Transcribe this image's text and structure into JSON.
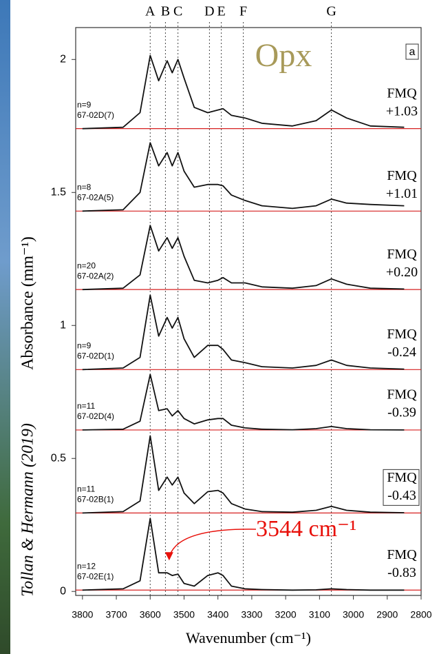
{
  "chart_data": {
    "type": "line",
    "panel_label": "a",
    "mineral": "Opx",
    "ylabel": "Absorbance (mm⁻¹)",
    "xlabel": "Wavenumber (cm⁻¹)",
    "citation": "Tollan & Hermann (2019)",
    "xlim": [
      3820,
      2800
    ],
    "ylim": [
      -0.015,
      2.12
    ],
    "xticks": [
      3800,
      3700,
      3600,
      3500,
      3400,
      3300,
      3200,
      3100,
      3000,
      2900,
      2800
    ],
    "yticks": [
      0,
      0.5,
      1,
      1.5,
      2
    ],
    "peaks": [
      {
        "label": "A",
        "x": 3600
      },
      {
        "label": "B",
        "x": 3555
      },
      {
        "label": "C",
        "x": 3518
      },
      {
        "label": "D",
        "x": 3425
      },
      {
        "label": "E",
        "x": 3390
      },
      {
        "label": "F",
        "x": 3325
      },
      {
        "label": "G",
        "x": 3065
      }
    ],
    "x": [
      3800,
      3680,
      3630,
      3600,
      3575,
      3550,
      3535,
      3518,
      3500,
      3470,
      3430,
      3400,
      3385,
      3360,
      3320,
      3270,
      3180,
      3110,
      3065,
      3020,
      2950,
      2850
    ],
    "series": [
      {
        "name": "67-02D(7)",
        "n": "n=9",
        "fmq": [
          "FMQ",
          "+1.03"
        ],
        "color": "#111111",
        "baseline": 1.74,
        "values": [
          1.74,
          1.745,
          1.8,
          2.015,
          1.92,
          1.995,
          1.95,
          2.0,
          1.93,
          1.82,
          1.8,
          1.81,
          1.815,
          1.79,
          1.78,
          1.76,
          1.75,
          1.77,
          1.81,
          1.78,
          1.75,
          1.745
        ]
      },
      {
        "name": "67-02A(5)",
        "n": "n=8",
        "fmq": [
          "FMQ",
          "+1.01"
        ],
        "color": "#111111",
        "baseline": 1.43,
        "values": [
          1.43,
          1.435,
          1.5,
          1.687,
          1.6,
          1.65,
          1.6,
          1.65,
          1.58,
          1.52,
          1.53,
          1.53,
          1.525,
          1.49,
          1.47,
          1.45,
          1.44,
          1.45,
          1.475,
          1.46,
          1.455,
          1.45
        ]
      },
      {
        "name": "67-02A(2)",
        "n": "n=20",
        "fmq": [
          "FMQ",
          "+0.20"
        ],
        "color": "#111111",
        "baseline": 1.135,
        "values": [
          1.135,
          1.14,
          1.19,
          1.376,
          1.28,
          1.33,
          1.29,
          1.33,
          1.26,
          1.17,
          1.16,
          1.17,
          1.18,
          1.16,
          1.16,
          1.145,
          1.14,
          1.15,
          1.175,
          1.155,
          1.14,
          1.137
        ]
      },
      {
        "name": "67-02D(1)",
        "n": "n=9",
        "fmq": [
          "FMQ",
          "-0.24"
        ],
        "color": "#111111",
        "baseline": 0.834,
        "values": [
          0.834,
          0.84,
          0.88,
          1.114,
          0.96,
          1.03,
          0.99,
          1.03,
          0.95,
          0.88,
          0.925,
          0.925,
          0.91,
          0.87,
          0.86,
          0.845,
          0.84,
          0.85,
          0.87,
          0.85,
          0.84,
          0.836
        ]
      },
      {
        "name": "67-02D(4)",
        "n": "n=11",
        "fmq": [
          "FMQ",
          "-0.39"
        ],
        "color": "#111111",
        "baseline": 0.607,
        "values": [
          0.607,
          0.61,
          0.64,
          0.816,
          0.68,
          0.687,
          0.66,
          0.68,
          0.65,
          0.63,
          0.645,
          0.65,
          0.65,
          0.625,
          0.615,
          0.61,
          0.608,
          0.612,
          0.62,
          0.612,
          0.608,
          0.607
        ]
      },
      {
        "name": "67-02B(1)",
        "n": "n=11",
        "fmq": [
          "FMQ",
          "-0.43"
        ],
        "boxed": true,
        "color": "#111111",
        "baseline": 0.295,
        "values": [
          0.295,
          0.3,
          0.34,
          0.585,
          0.38,
          0.43,
          0.4,
          0.43,
          0.37,
          0.33,
          0.375,
          0.38,
          0.37,
          0.33,
          0.31,
          0.3,
          0.298,
          0.305,
          0.32,
          0.305,
          0.298,
          0.296
        ]
      },
      {
        "name": "67-02E(1)",
        "n": "n=12",
        "fmq": [
          "FMQ",
          "-0.83"
        ],
        "color": "#111111",
        "baseline": 0.005,
        "values": [
          0.005,
          0.01,
          0.04,
          0.275,
          0.07,
          0.07,
          0.06,
          0.065,
          0.03,
          0.02,
          0.06,
          0.07,
          0.06,
          0.02,
          0.01,
          0.007,
          0.005,
          0.006,
          0.01,
          0.007,
          0.005,
          0.005
        ]
      }
    ],
    "annotation": {
      "text": "3544 cm⁻¹",
      "x": 3544,
      "y": 0.07,
      "color": "#e8100a"
    }
  }
}
